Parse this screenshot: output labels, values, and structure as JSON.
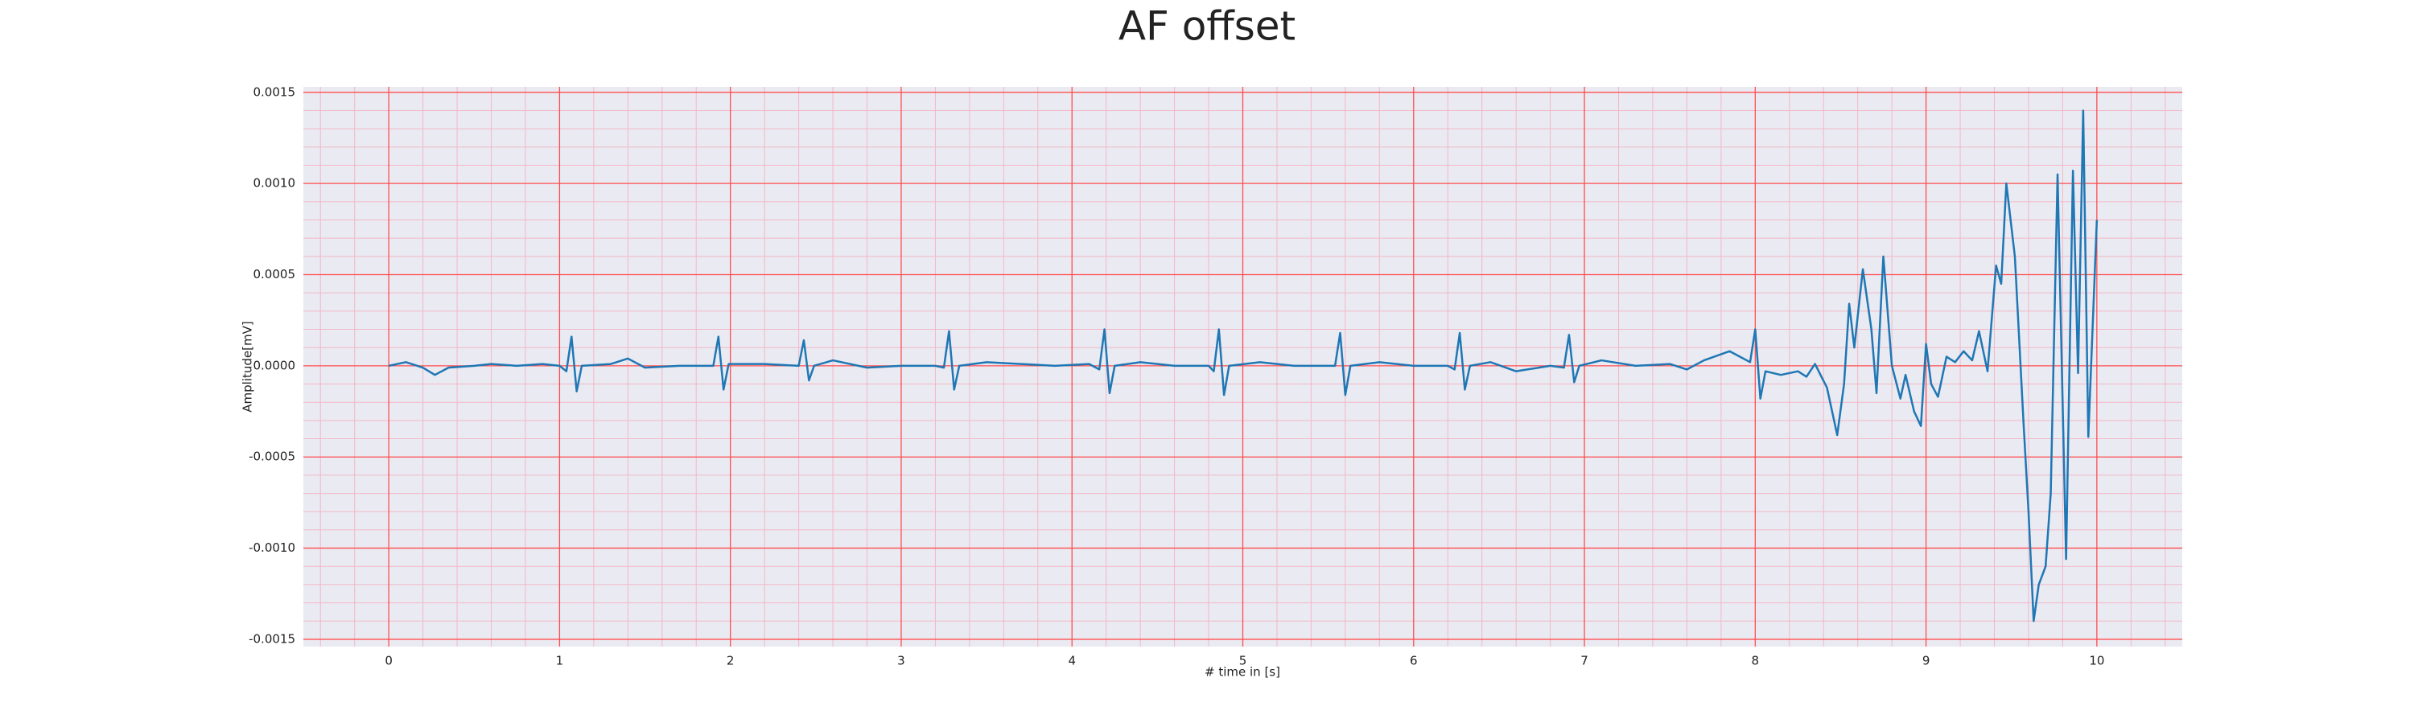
{
  "chart_data": {
    "type": "line",
    "title": "AF offset",
    "xlabel": "# time in [s]",
    "ylabel": "Amplitude[mV]",
    "xlim": [
      -0.5,
      10.5
    ],
    "xticks": [
      0,
      1,
      2,
      3,
      4,
      5,
      6,
      7,
      8,
      9,
      10
    ],
    "ylim": [
      -0.00154,
      0.00153
    ],
    "yticks": [
      {
        "value": -0.0015,
        "label": "-0.0015"
      },
      {
        "value": -0.001,
        "label": "-0.0010"
      },
      {
        "value": -0.0005,
        "label": "-0.0005"
      },
      {
        "value": 0,
        "label": "0.0000"
      },
      {
        "value": 0.0005,
        "label": "0.0005"
      },
      {
        "value": 0.001,
        "label": "0.0010"
      },
      {
        "value": 0.0015,
        "label": "0.0015"
      }
    ],
    "grid": true,
    "minor_grid": true,
    "grid_color": "#ff4d4d",
    "minor_grid_color": "#f2b8c6",
    "background": "#eaeaf2",
    "series": [
      {
        "color": "#1f77b4",
        "x": [
          0,
          0.1,
          0.2,
          0.27,
          0.35,
          0.5,
          0.6,
          0.75,
          0.9,
          1.0,
          1.04,
          1.07,
          1.1,
          1.13,
          1.3,
          1.4,
          1.5,
          1.7,
          1.9,
          1.93,
          1.96,
          1.99,
          2.2,
          2.4,
          2.43,
          2.46,
          2.49,
          2.6,
          2.8,
          3.0,
          3.2,
          3.25,
          3.28,
          3.31,
          3.34,
          3.5,
          3.7,
          3.9,
          4.1,
          4.16,
          4.19,
          4.22,
          4.25,
          4.4,
          4.6,
          4.8,
          4.83,
          4.86,
          4.89,
          4.92,
          5.1,
          5.3,
          5.54,
          5.57,
          5.6,
          5.63,
          5.8,
          6.0,
          6.2,
          6.24,
          6.27,
          6.3,
          6.33,
          6.45,
          6.6,
          6.8,
          6.88,
          6.91,
          6.94,
          6.97,
          7.1,
          7.3,
          7.5,
          7.6,
          7.7,
          7.85,
          7.97,
          8.0,
          8.03,
          8.06,
          8.15,
          8.25,
          8.3,
          8.35,
          8.42,
          8.48,
          8.52,
          8.55,
          8.58,
          8.63,
          8.68,
          8.71,
          8.75,
          8.8,
          8.85,
          8.88,
          8.93,
          8.97,
          9.0,
          9.03,
          9.07,
          9.12,
          9.17,
          9.22,
          9.27,
          9.31,
          9.36,
          9.41,
          9.44,
          9.47,
          9.52,
          9.57,
          9.6,
          9.63,
          9.66,
          9.7,
          9.73,
          9.77,
          9.82,
          9.86,
          9.89,
          9.92,
          9.95,
          10.0
        ],
        "values": [
          0,
          2e-05,
          -1e-05,
          -5e-05,
          -1e-05,
          0,
          1e-05,
          0,
          1e-05,
          0,
          -3e-05,
          0.00016,
          -0.00014,
          0,
          1e-05,
          4e-05,
          -1e-05,
          0,
          0,
          0.00016,
          -0.00013,
          1e-05,
          1e-05,
          0,
          0.00014,
          -8e-05,
          0,
          3e-05,
          -1e-05,
          0,
          0,
          -1e-05,
          0.00019,
          -0.00013,
          0,
          2e-05,
          1e-05,
          0,
          1e-05,
          -2e-05,
          0.0002,
          -0.00015,
          0,
          2e-05,
          0,
          0,
          -3e-05,
          0.0002,
          -0.00016,
          0,
          2e-05,
          0,
          0,
          0.00018,
          -0.00016,
          0,
          2e-05,
          0,
          0,
          -2e-05,
          0.00018,
          -0.00013,
          0,
          2e-05,
          -3e-05,
          0,
          -1e-05,
          0.00017,
          -9e-05,
          0,
          3e-05,
          0,
          1e-05,
          -2e-05,
          3e-05,
          8e-05,
          2e-05,
          0.0002,
          -0.00018,
          -3e-05,
          -5e-05,
          -3e-05,
          -6e-05,
          1e-05,
          -0.00012,
          -0.00038,
          -0.0001,
          0.00034,
          0.0001,
          0.00053,
          0.0002,
          -0.00015,
          0.0006,
          0.0,
          -0.00018,
          -5e-05,
          -0.00025,
          -0.00033,
          0.00012,
          -0.0001,
          -0.00017,
          5e-05,
          2e-05,
          8e-05,
          3e-05,
          0.00019,
          -3e-05,
          0.00055,
          0.00045,
          0.001,
          0.0006,
          -0.0003,
          -0.0008,
          -0.0014,
          -0.0012,
          -0.0011,
          -0.0007,
          0.00105,
          -0.00106,
          0.00107,
          -4e-05,
          0.0014,
          -0.00039,
          0.0008
        ]
      }
    ]
  }
}
